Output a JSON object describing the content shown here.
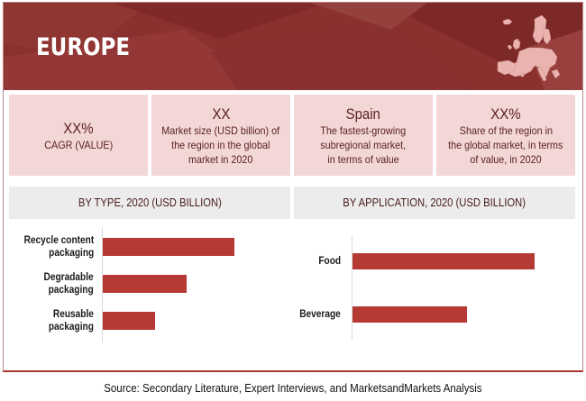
{
  "header": {
    "title": "EUROPE",
    "icon": "europe-map-icon",
    "brand_color": "#8a302e"
  },
  "kpis": [
    {
      "value": "XX%",
      "description": "CAGR (VALUE)"
    },
    {
      "value": "XX",
      "description_lines": [
        "Market size (USD billion) of",
        "the region in the global",
        "market in 2020"
      ]
    },
    {
      "value": "Spain",
      "description_lines": [
        "The fastest-growing",
        "subregional market,",
        "in terms of value"
      ]
    },
    {
      "value": "XX%",
      "description_lines": [
        "Share of the region in",
        "the global market, in terms",
        "of value, in 2020"
      ]
    }
  ],
  "chart_data": [
    {
      "type": "bar",
      "orientation": "horizontal",
      "title": "BY TYPE, 2020 (USD BILLION)",
      "categories": [
        "Recycle content packaging",
        "Degradable packaging",
        "Reusable packaging"
      ],
      "category_lines": [
        [
          "Recycle content",
          "packaging"
        ],
        [
          "Degradable",
          "packaging"
        ],
        [
          "Reusable",
          "packaging"
        ]
      ],
      "values": [
        100,
        63.5,
        39.5
      ],
      "value_note": "relative bar lengths; no axis values shown",
      "bar_color": "#b53a33",
      "grid": false,
      "legend": "none"
    },
    {
      "type": "bar",
      "orientation": "horizontal",
      "title": "BY APPLICATION, 2020 (USD BILLION)",
      "categories": [
        "Food",
        "Beverage"
      ],
      "category_lines": [
        [
          "Food"
        ],
        [
          "Beverage"
        ]
      ],
      "values": [
        100,
        63
      ],
      "value_note": "relative bar lengths; no axis values shown",
      "bar_color": "#b53a33",
      "grid": false,
      "legend": "none"
    }
  ],
  "footer": {
    "source": "Source: Secondary Literature, Expert Interviews, and MarketsandMarkets Analysis"
  }
}
